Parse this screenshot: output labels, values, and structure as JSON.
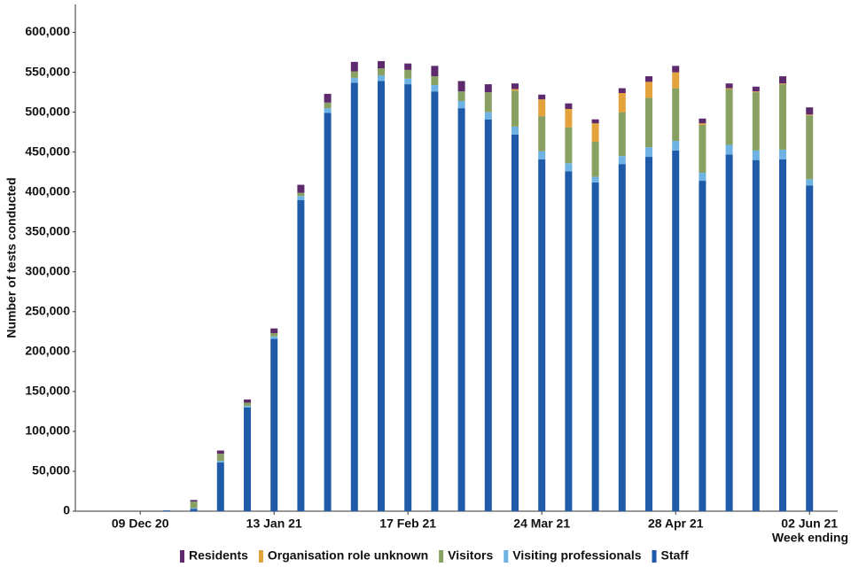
{
  "chart_data": {
    "type": "stacked_bar",
    "y_label": "Number of tests conducted",
    "x_label": "Week ending",
    "categories": [
      null,
      "09 Dec 20",
      null,
      null,
      null,
      null,
      "13 Jan 21",
      null,
      null,
      null,
      null,
      "17 Feb 21",
      null,
      null,
      null,
      null,
      "24 Mar 21",
      null,
      null,
      null,
      null,
      "28 Apr 21",
      null,
      null,
      null,
      null,
      "02 Jun 21"
    ],
    "series": [
      {
        "name": "Residents",
        "color": "#5e2a6e",
        "values": [
          0,
          0,
          0,
          2000,
          4000,
          4000,
          6000,
          10000,
          11000,
          12000,
          9000,
          8000,
          13000,
          13000,
          10000,
          7000,
          6000,
          7000,
          5000,
          6000,
          7000,
          8000,
          6000,
          6000,
          6000,
          9000,
          9000
        ]
      },
      {
        "name": "Organisation role unknown",
        "color": "#e4a23c",
        "values": [
          0,
          0,
          0,
          0,
          0,
          0,
          0,
          0,
          0,
          0,
          0,
          0,
          0,
          0,
          0,
          2000,
          21000,
          23000,
          23000,
          24000,
          20000,
          20000,
          2000,
          1000,
          1000,
          1000,
          1000
        ]
      },
      {
        "name": "Visitors",
        "color": "#88a061",
        "values": [
          0,
          0,
          0,
          8000,
          9000,
          4000,
          4000,
          4000,
          7000,
          8000,
          9000,
          11000,
          11000,
          12000,
          25000,
          45000,
          44000,
          45000,
          44000,
          55000,
          62000,
          66000,
          60000,
          70000,
          73000,
          82000,
          80000
        ]
      },
      {
        "name": "Visiting professionals",
        "color": "#6fb3e4",
        "values": [
          0,
          0,
          0,
          1000,
          2000,
          2000,
          3000,
          5000,
          6000,
          6000,
          7000,
          7000,
          8000,
          9000,
          9000,
          10000,
          10000,
          10000,
          7000,
          10000,
          12000,
          12000,
          10000,
          12000,
          12000,
          12000,
          8000
        ]
      },
      {
        "name": "Staff",
        "color": "#1f5ba8",
        "values": [
          0,
          0,
          1000,
          3000,
          61000,
          130000,
          216000,
          390000,
          499000,
          537000,
          539000,
          535000,
          526000,
          505000,
          491000,
          472000,
          441000,
          426000,
          412000,
          435000,
          444000,
          452000,
          414000,
          447000,
          440000,
          441000,
          408000
        ]
      }
    ],
    "ylim": [
      0,
      635000
    ],
    "yticks": [
      0,
      {
        "value": 50000,
        "label": "50,000"
      },
      {
        "value": 100000,
        "label": "100,000"
      },
      {
        "value": 150000,
        "label": "150,000"
      },
      {
        "value": 200000,
        "label": "200,000"
      },
      {
        "value": 250000,
        "label": "250,000"
      },
      {
        "value": 300000,
        "label": "300,000"
      },
      {
        "value": 350000,
        "label": "350,000"
      },
      {
        "value": 400000,
        "label": "400,000"
      },
      {
        "value": 450000,
        "label": "450,000"
      },
      {
        "value": 500000,
        "label": "500,000"
      },
      {
        "value": 550000,
        "label": "550,000"
      },
      {
        "value": 600000,
        "label": "600,000"
      }
    ],
    "grid": false,
    "legend": "bottom"
  }
}
